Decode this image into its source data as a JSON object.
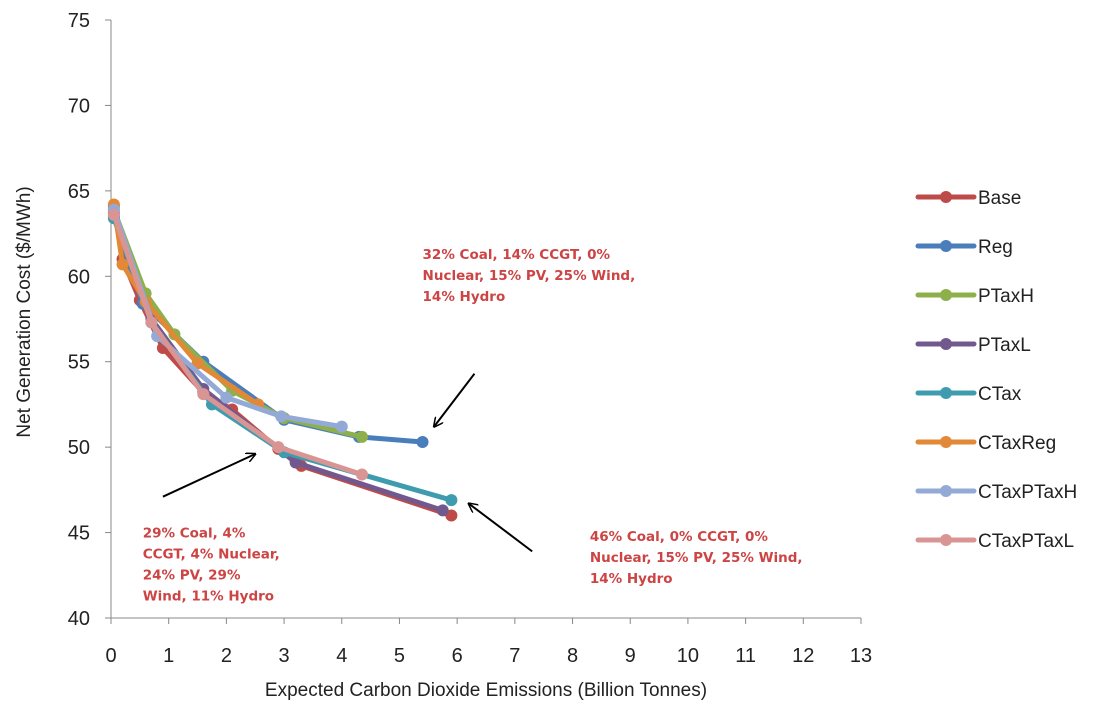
{
  "chart_data": {
    "type": "line",
    "title": "",
    "xlabel": "Expected Carbon Dioxide Emissions (Billion Tonnes)",
    "ylabel": "Net Generation Cost ($/MWh)",
    "xlim": [
      0,
      13
    ],
    "ylim": [
      40,
      75
    ],
    "x_ticks": [
      0,
      1,
      2,
      3,
      4,
      5,
      6,
      7,
      8,
      9,
      10,
      11,
      12,
      13
    ],
    "y_ticks": [
      40,
      45,
      50,
      55,
      60,
      65,
      70,
      75
    ],
    "grid": false,
    "legend_position": "right",
    "series": [
      {
        "name": "Base",
        "color": "#be4b48",
        "x": [
          0.05,
          0.2,
          0.5,
          0.9,
          1.6,
          2.1,
          2.9,
          3.3,
          5.9
        ],
        "y": [
          64.1,
          61.0,
          58.6,
          55.8,
          53.2,
          52.2,
          49.9,
          48.9,
          46.0
        ]
      },
      {
        "name": "Reg",
        "color": "#4a7ebb",
        "x": [
          0.05,
          0.55,
          1.6,
          3.0,
          4.3,
          5.4
        ],
        "y": [
          63.5,
          58.4,
          55.0,
          51.6,
          50.6,
          50.3
        ]
      },
      {
        "name": "PTaxH",
        "color": "#8db04b",
        "x": [
          0.05,
          0.6,
          1.1,
          2.1,
          3.0,
          4.35
        ],
        "y": [
          63.9,
          59.0,
          56.6,
          53.3,
          51.7,
          50.6
        ]
      },
      {
        "name": "PTaxL",
        "color": "#71598f",
        "x": [
          0.05,
          0.7,
          1.6,
          3.2,
          5.75
        ],
        "y": [
          63.7,
          57.5,
          53.4,
          49.1,
          46.3
        ]
      },
      {
        "name": "CTax",
        "color": "#3e9cae",
        "x": [
          0.05,
          0.7,
          1.75,
          3.0,
          5.9
        ],
        "y": [
          63.4,
          57.3,
          52.5,
          49.7,
          46.9
        ]
      },
      {
        "name": "CTaxReg",
        "color": "#e28836",
        "x": [
          0.05,
          0.2,
          0.6,
          1.5,
          2.55
        ],
        "y": [
          64.2,
          60.7,
          58.5,
          54.9,
          52.5
        ]
      },
      {
        "name": "CTaxPTaxH",
        "color": "#93a9d6",
        "x": [
          0.05,
          0.8,
          2.0,
          2.95,
          4.0
        ],
        "y": [
          63.9,
          56.5,
          52.9,
          51.8,
          51.2
        ]
      },
      {
        "name": "CTaxPTaxL",
        "color": "#d99594",
        "x": [
          0.05,
          0.7,
          1.6,
          2.9,
          4.35
        ],
        "y": [
          63.6,
          57.3,
          53.1,
          50.0,
          48.4
        ]
      }
    ],
    "annotations": [
      {
        "lines": [
          "32% Coal, 14% CCGT, 0%",
          "Nuclear, 15% PV, 25% Wind,",
          "14% Hydro"
        ],
        "color": "#cc4444",
        "text_at": [
          5.4,
          61.0
        ],
        "arrow_from": [
          6.3,
          54.3
        ],
        "arrow_to": [
          5.6,
          51.2
        ]
      },
      {
        "lines": [
          "29% Coal, 4%",
          "CCGT, 4% Nuclear,",
          "24% PV, 29%",
          "Wind, 11% Hydro"
        ],
        "color": "#cc4444",
        "text_at": [
          0.55,
          44.7
        ],
        "arrow_from": [
          0.9,
          47.1
        ],
        "arrow_to": [
          2.5,
          49.6
        ]
      },
      {
        "lines": [
          "46% Coal, 0% CCGT, 0%",
          "Nuclear, 15% PV, 25% Wind,",
          "14% Hydro"
        ],
        "color": "#cc4444",
        "text_at": [
          8.3,
          44.5
        ],
        "arrow_from": [
          7.3,
          43.9
        ],
        "arrow_to": [
          6.2,
          46.7
        ]
      }
    ]
  }
}
